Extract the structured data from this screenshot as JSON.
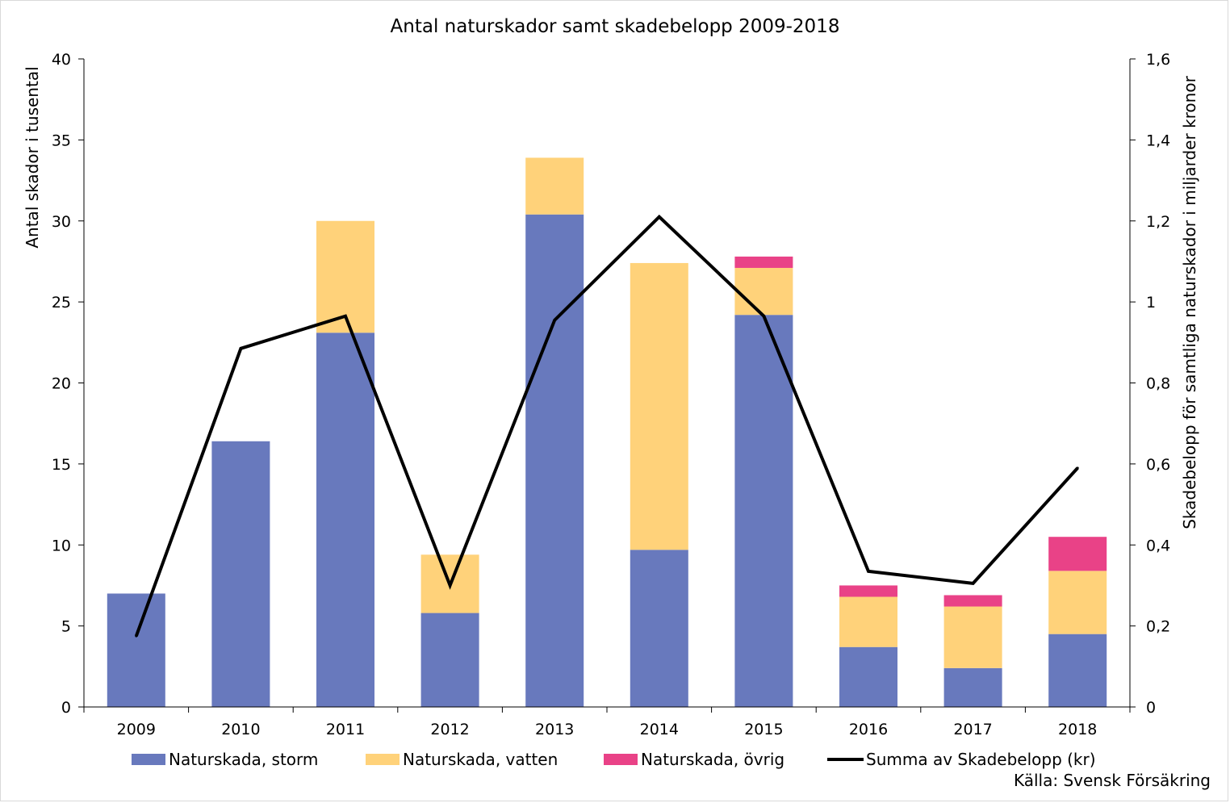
{
  "chart_data": {
    "type": "bar",
    "stacked": true,
    "title": "Antal naturskador samt skadebelopp 2009-2018",
    "categories": [
      "2009",
      "2010",
      "2011",
      "2012",
      "2013",
      "2014",
      "2015",
      "2016",
      "2017",
      "2018"
    ],
    "ylabel": "Antal skador i tusental",
    "y2label": "Skadebelopp för samtliga naturskador i miljarder kronor",
    "ylim": [
      0,
      40
    ],
    "yticks": [
      "0",
      "5",
      "10",
      "15",
      "20",
      "25",
      "30",
      "35",
      "40"
    ],
    "y2lim": [
      0,
      1.6
    ],
    "y2ticks": [
      "0",
      "0,2",
      "0,4",
      "0,6",
      "0,8",
      "1",
      "1,2",
      "1,4",
      "1,6"
    ],
    "grid": false,
    "legend_position": "bottom",
    "series": [
      {
        "name": "Naturskada, storm",
        "type": "bar",
        "axis": "left",
        "color": "#6879bd",
        "values": [
          7.0,
          16.4,
          23.1,
          5.8,
          30.4,
          9.7,
          24.2,
          3.7,
          2.4,
          4.5
        ]
      },
      {
        "name": "Naturskada, vatten",
        "type": "bar",
        "axis": "left",
        "color": "#ffd27a",
        "values": [
          0,
          0,
          6.9,
          3.6,
          3.5,
          17.7,
          2.9,
          3.1,
          3.8,
          3.9
        ]
      },
      {
        "name": "Naturskada, övrig",
        "type": "bar",
        "axis": "left",
        "color": "#e94287",
        "values": [
          0,
          0,
          0,
          0,
          0,
          0,
          0.7,
          0.7,
          0.7,
          2.1
        ]
      },
      {
        "name": "Summa av Skadebelopp (kr)",
        "type": "line",
        "axis": "right",
        "color": "#000000",
        "values": [
          0.175,
          0.885,
          0.965,
          0.3,
          0.955,
          1.21,
          0.965,
          0.335,
          0.305,
          0.59
        ]
      }
    ],
    "source": "Källa: Svensk Försäkring"
  }
}
